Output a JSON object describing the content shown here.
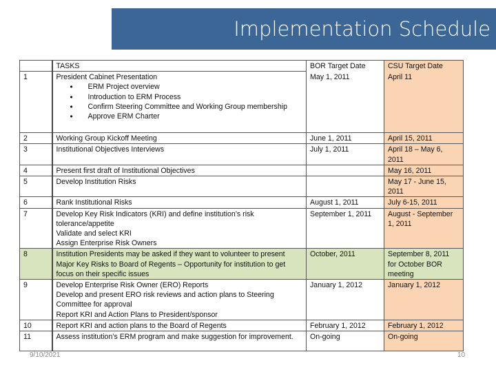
{
  "title": "Implementation Schedule",
  "headers": {
    "num": "",
    "tasks": "TASKS",
    "bor": "BOR Target Date",
    "csu": "CSU Target Date"
  },
  "rows": [
    {
      "num": "1",
      "lines": [
        "President Cabinet Presentation"
      ],
      "bullets": [
        "ERM Project overview",
        "Introduction to ERM Process",
        "Confirm Steering Committee and Working Group membership",
        "Approve ERM Charter"
      ],
      "bor": "May 1, 2011",
      "csu": "April 11"
    },
    {
      "num": "2",
      "lines": [
        "Working Group Kickoff Meeting"
      ],
      "bor": "June 1, 2011",
      "csu": "April 15, 2011"
    },
    {
      "num": "3",
      "lines": [
        "Institutional Objectives Interviews"
      ],
      "bor": "July 1, 2011",
      "csu": "April 18 – May 6, 2011"
    },
    {
      "num": "4",
      "lines": [
        "Present first draft of Institutional Objectives"
      ],
      "bor": "",
      "csu": "May 16, 2011"
    },
    {
      "num": "5",
      "lines": [
        "Develop Institution Risks"
      ],
      "bor": "",
      "csu": "May 17 - June 15, 2011"
    },
    {
      "num": "6",
      "lines": [
        "Rank Institutional Risks"
      ],
      "bor": "August 1, 2011",
      "csu": "July 6-15, 2011"
    },
    {
      "num": "7",
      "lines": [
        "Develop Key Risk Indicators (KRI) and define institution’s risk tolerance/appetite",
        "Validate and select KRI",
        "Assign Enterprise Risk Owners"
      ],
      "bor": "September 1, 2011",
      "csu": "August - September  1, 2011"
    },
    {
      "num": "8",
      "lines": [
        "Institution Presidents may be asked if they want to volunteer to present Major Key Risks to Board of Regents – Opportunity for institution to get focus on their specific issues"
      ],
      "bor": "October, 2011",
      "csu": "September 8, 2011 for October BOR meeting"
    },
    {
      "num": "9",
      "lines": [
        "Develop Enterprise Risk Owner (ERO)  Reports",
        "Develop and present ERO risk reviews and action plans to Steering Committee for approval",
        "Report KRI  and Action Plans to President/sponsor"
      ],
      "bor": "January 1, 2012",
      "csu": "January 1, 2012"
    },
    {
      "num": "10",
      "lines": [
        "Report KRI and action plans to the Board of Regents"
      ],
      "bor": "February 1, 2012",
      "csu": "February 1, 2012"
    },
    {
      "num": "11",
      "lines": [
        "Assess institution’s ERM program and make suggestion for improvement."
      ],
      "bor": "On-going",
      "csu": "On-going"
    }
  ],
  "highlight_row": "8",
  "colors": {
    "title_bg": "#3b6695",
    "csu_column": "#fbd4b4",
    "highlight": "#d7e4bd"
  },
  "footer": {
    "date": "9/10/2021",
    "page": "10"
  }
}
